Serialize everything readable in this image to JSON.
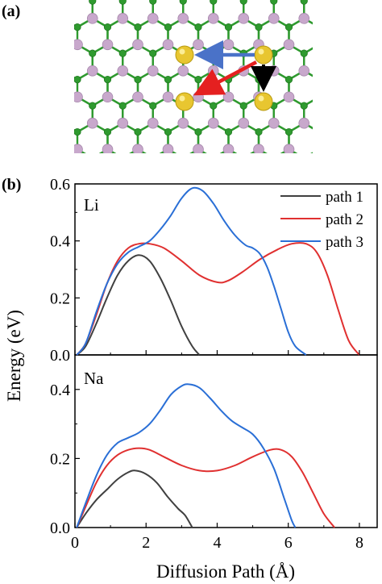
{
  "panel_a": {
    "label": "(a)",
    "colors": {
      "green": "#2f9a2f",
      "purple": "#c8a8cc",
      "gold": "#e8c630",
      "blue_arrow": "#4a72c8",
      "red_arrow": "#e52020",
      "black_arrow": "#000000"
    }
  },
  "chart_data": {
    "type": "line",
    "panel_label": "(b)",
    "xlabel": "Diffusion Path (Å)",
    "ylabel": "Energy (eV)",
    "xlim": [
      0,
      8.5
    ],
    "xticks": [
      "0",
      "2",
      "4",
      "6",
      "8"
    ],
    "legend": {
      "placement": "top-right",
      "entries": [
        {
          "name": "path 1",
          "color": "#404040"
        },
        {
          "name": "path 2",
          "color": "#e03030"
        },
        {
          "name": "path 3",
          "color": "#2a6fd6"
        }
      ]
    },
    "subplots": [
      {
        "label": "Li",
        "ylim": [
          0,
          0.6
        ],
        "yticks": [
          "0.0",
          "0.2",
          "0.4",
          "0.6"
        ],
        "series": [
          {
            "name": "path 1",
            "color": "#404040",
            "x": [
              0.05,
              0.3,
              0.6,
              0.9,
              1.2,
              1.5,
              1.8,
              2.1,
              2.4,
              2.7,
              3.0,
              3.3,
              3.5
            ],
            "y": [
              0.0,
              0.03,
              0.11,
              0.2,
              0.28,
              0.33,
              0.35,
              0.33,
              0.27,
              0.19,
              0.1,
              0.03,
              0.0
            ]
          },
          {
            "name": "path 2",
            "color": "#e03030",
            "x": [
              0.05,
              0.3,
              0.6,
              0.9,
              1.2,
              1.5,
              1.8,
              2.1,
              2.5,
              3.0,
              3.5,
              4.0,
              4.3,
              4.7,
              5.2,
              5.7,
              6.1,
              6.5,
              6.8,
              7.1,
              7.4,
              7.7,
              8.0
            ],
            "y": [
              0.0,
              0.04,
              0.14,
              0.25,
              0.33,
              0.375,
              0.39,
              0.39,
              0.375,
              0.33,
              0.28,
              0.255,
              0.26,
              0.29,
              0.335,
              0.37,
              0.39,
              0.39,
              0.36,
              0.28,
              0.16,
              0.05,
              0.0
            ]
          },
          {
            "name": "path 3",
            "color": "#2a6fd6",
            "x": [
              0.05,
              0.3,
              0.6,
              0.9,
              1.2,
              1.5,
              1.8,
              2.1,
              2.4,
              2.7,
              3.0,
              3.3,
              3.6,
              3.9,
              4.2,
              4.5,
              4.8,
              5.0,
              5.2,
              5.4,
              5.6,
              5.8,
              6.0,
              6.2,
              6.5
            ],
            "y": [
              0.0,
              0.04,
              0.15,
              0.25,
              0.32,
              0.36,
              0.38,
              0.4,
              0.44,
              0.49,
              0.55,
              0.585,
              0.575,
              0.53,
              0.47,
              0.42,
              0.385,
              0.375,
              0.355,
              0.31,
              0.24,
              0.16,
              0.08,
              0.03,
              0.0
            ]
          }
        ]
      },
      {
        "label": "Na",
        "ylim": [
          0,
          0.5
        ],
        "yticks": [
          "0.0",
          "0.2",
          "0.4"
        ],
        "series": [
          {
            "name": "path 1",
            "color": "#404040",
            "x": [
              0.05,
              0.3,
              0.6,
              0.9,
              1.2,
              1.5,
              1.7,
              2.0,
              2.3,
              2.6,
              2.9,
              3.1,
              3.3
            ],
            "y": [
              0.0,
              0.04,
              0.08,
              0.11,
              0.14,
              0.16,
              0.165,
              0.155,
              0.13,
              0.09,
              0.055,
              0.035,
              0.0
            ]
          },
          {
            "name": "path 2",
            "color": "#e03030",
            "x": [
              0.05,
              0.3,
              0.6,
              0.9,
              1.2,
              1.5,
              1.8,
              2.1,
              2.5,
              3.0,
              3.5,
              4.0,
              4.5,
              5.0,
              5.5,
              5.8,
              6.1,
              6.4,
              6.7,
              7.0,
              7.3
            ],
            "y": [
              0.0,
              0.06,
              0.13,
              0.18,
              0.21,
              0.225,
              0.23,
              0.225,
              0.205,
              0.18,
              0.165,
              0.165,
              0.18,
              0.205,
              0.225,
              0.225,
              0.205,
              0.16,
              0.1,
              0.04,
              0.0
            ]
          },
          {
            "name": "path 3",
            "color": "#2a6fd6",
            "x": [
              0.05,
              0.3,
              0.6,
              0.9,
              1.2,
              1.5,
              1.8,
              2.1,
              2.4,
              2.7,
              3.0,
              3.2,
              3.5,
              3.8,
              4.1,
              4.4,
              4.7,
              5.0,
              5.3,
              5.6,
              5.9,
              6.1,
              6.2
            ],
            "y": [
              0.0,
              0.07,
              0.15,
              0.21,
              0.245,
              0.26,
              0.275,
              0.3,
              0.34,
              0.385,
              0.41,
              0.415,
              0.405,
              0.375,
              0.34,
              0.31,
              0.29,
              0.27,
              0.23,
              0.17,
              0.08,
              0.02,
              0.0
            ]
          }
        ]
      }
    ]
  }
}
